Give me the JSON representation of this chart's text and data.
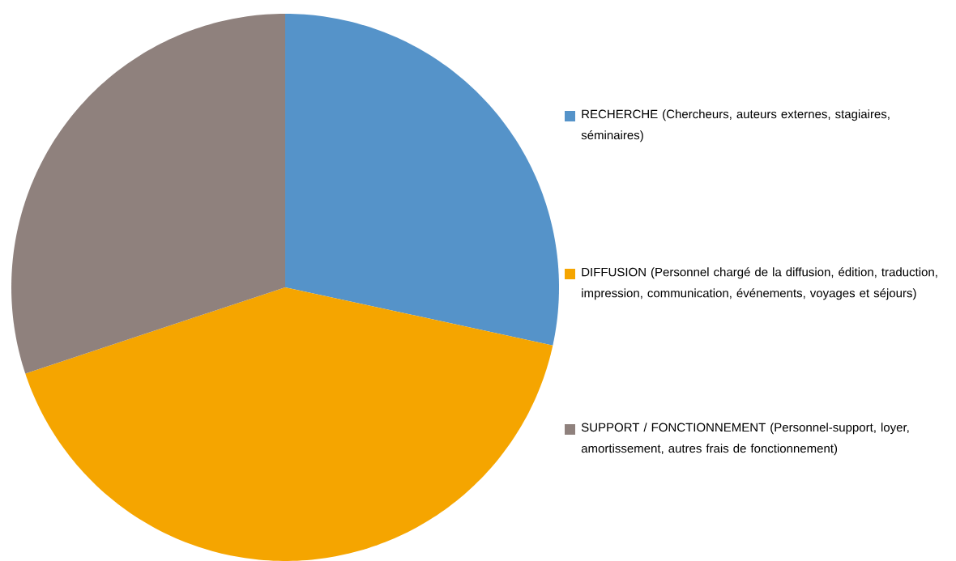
{
  "chart_data": {
    "type": "pie",
    "categories": [
      "RECHERCHE (Chercheurs, auteurs externes, stagiaires, séminaires)",
      "DIFFUSION (Personnel chargé de la diffusion, édition, traduction, impression, communication, événements, voyages et séjours)",
      "SUPPORT / FONCTIONNEMENT (Personnel-support, loyer, amortissement, autres frais de fonctionnement)"
    ],
    "values": [
      28.4,
      41.5,
      30.1
    ],
    "colors": [
      "#5593c9",
      "#f5a500",
      "#8f817d"
    ],
    "legend": "right"
  }
}
